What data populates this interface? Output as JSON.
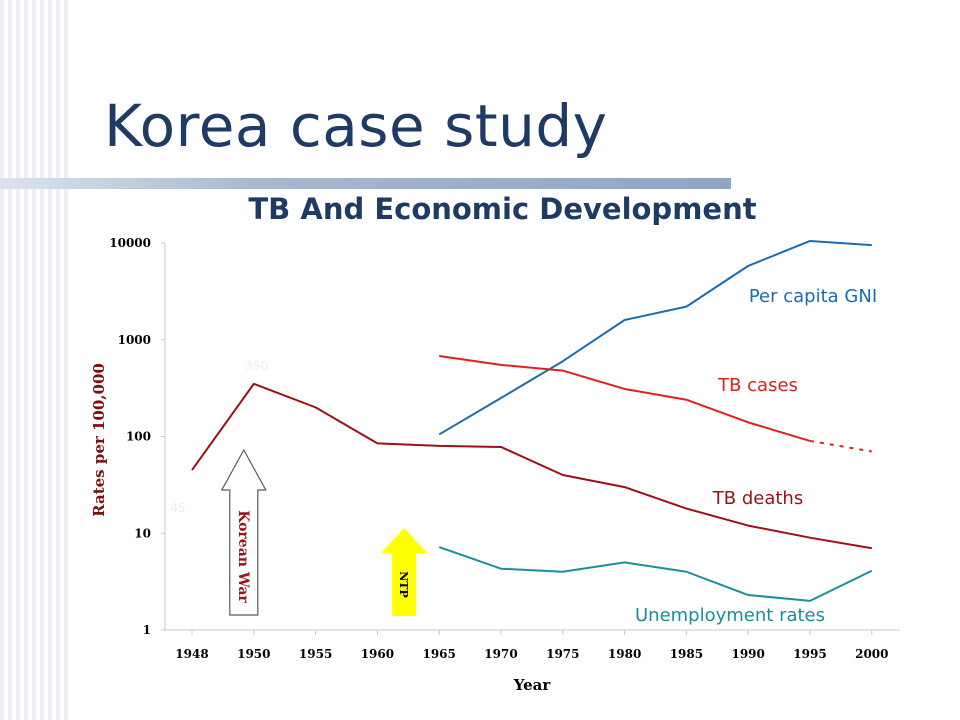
{
  "slide": {
    "title": "Korea case study"
  },
  "chart_data": {
    "type": "line",
    "title": "TB And Economic Development",
    "xlabel": "Year",
    "ylabel": "Rates per 100,000",
    "yscale": "log",
    "ylim": [
      1,
      10000
    ],
    "ytick_labels": [
      "10000",
      "1000",
      "100",
      "10",
      "1"
    ],
    "ytick_values": [
      10000,
      1000,
      100,
      10,
      1
    ],
    "categories": [
      "1948",
      "1950",
      "1955",
      "1960",
      "1965",
      "1970",
      "1975",
      "1980",
      "1985",
      "1990",
      "1995",
      "2000"
    ],
    "series": [
      {
        "name": "Per capita GNI",
        "color": "#1b6db0",
        "values": [
          null,
          null,
          null,
          null,
          105,
          250,
          600,
          1600,
          2200,
          5800,
          10500,
          9500
        ]
      },
      {
        "name": "TB cases",
        "color": "#e02020",
        "values": [
          null,
          null,
          null,
          null,
          680,
          550,
          480,
          310,
          240,
          140,
          90,
          70
        ],
        "dashed_from": "1995"
      },
      {
        "name": "TB deaths",
        "color": "#9b1118",
        "values": [
          45,
          350,
          200,
          85,
          80,
          78,
          40,
          30,
          18,
          12,
          9,
          7
        ]
      },
      {
        "name": "Unemployment rates",
        "color": "#1a8f9c",
        "values": [
          null,
          null,
          null,
          null,
          7.2,
          4.3,
          4.0,
          5.0,
          4.0,
          2.3,
          2.0,
          4.1
        ]
      }
    ],
    "annotations": [
      {
        "label": "Korean War",
        "style": "hollow-up-arrow",
        "x": "1950",
        "color": "#9b1118"
      },
      {
        "label": "NTP",
        "style": "filled-up-arrow",
        "x": "1965",
        "color": "#ffff00"
      }
    ],
    "faint_value_labels": [
      {
        "text": "45",
        "x": "1948"
      },
      {
        "text": "350",
        "x": "1950"
      }
    ],
    "grid": false,
    "legend": "inline-labels-right"
  }
}
